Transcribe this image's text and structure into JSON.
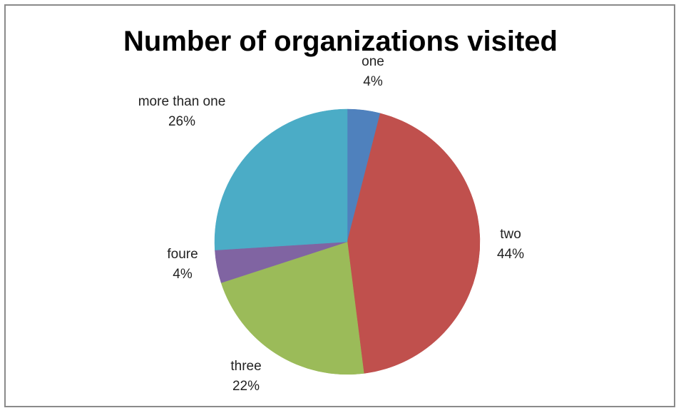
{
  "chart_data": {
    "type": "pie",
    "title": "Number of organizations visited",
    "slices": [
      {
        "name": "one",
        "value": 4,
        "label": "4%",
        "color": "#4f81bd"
      },
      {
        "name": "two",
        "value": 44,
        "label": "44%",
        "color": "#c0504d"
      },
      {
        "name": "three",
        "value": 22,
        "label": "22%",
        "color": "#9bbb59"
      },
      {
        "name": "foure",
        "value": 4,
        "label": "4%",
        "color": "#8064a2"
      },
      {
        "name": "more than one",
        "value": 26,
        "label": "26%",
        "color": "#4bacc6"
      }
    ]
  }
}
